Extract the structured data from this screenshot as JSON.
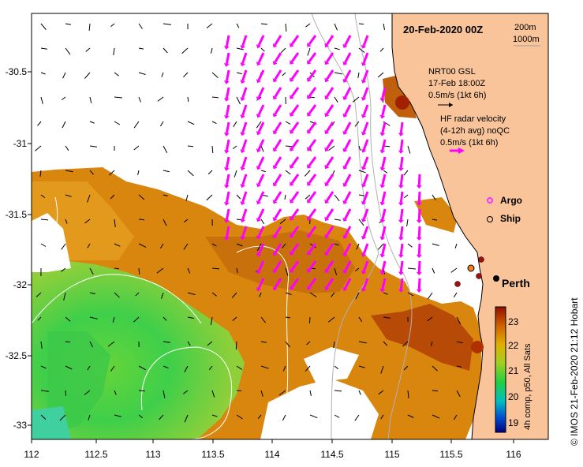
{
  "title": "20-Feb-2020 00Z",
  "depth_legend": {
    "line1": "200m",
    "line2": "1000m"
  },
  "gsl_legend": {
    "line1": "NRT00 GSL",
    "line2": "17-Feb 18:00Z",
    "line3": "0.5m/s (1kt 6h)"
  },
  "radar_legend": {
    "line1": "HF radar velocity",
    "line2": "(4-12h avg) noQC",
    "line3": "0.5m/s (1kt 6h)"
  },
  "markers_legend": {
    "argo": "Argo",
    "ship": "Ship"
  },
  "city": "Perth",
  "colorbar": {
    "label": "4h comp, p50, All Sats",
    "ticks": [
      "19",
      "20",
      "21",
      "22",
      "23"
    ]
  },
  "credit": "© IMOS 21-Feb-2020 21:12 Hobart",
  "axes": {
    "x_ticks": [
      "112",
      "112.5",
      "113",
      "113.5",
      "114",
      "114.5",
      "115",
      "115.5",
      "116"
    ],
    "y_ticks": [
      "-30.5",
      "-31",
      "-31.5",
      "-32",
      "-32.5",
      "-33"
    ]
  },
  "colors": {
    "land": "#f9c49a",
    "radar_arrow": "#ff00ff",
    "gsl_arrow": "#000000",
    "argo": "#ff33ff"
  }
}
